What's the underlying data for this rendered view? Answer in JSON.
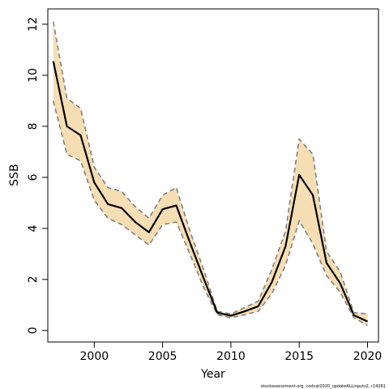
{
  "chart_data": {
    "type": "line",
    "title": "",
    "xlabel": "Year",
    "ylabel": "SSB",
    "xlim": [
      1996.6,
      2020.8
    ],
    "ylim": [
      -0.45,
      12.6
    ],
    "x_ticks": [
      2000,
      2005,
      2010,
      2015,
      2020
    ],
    "y_ticks": [
      0,
      2,
      4,
      6,
      8,
      10,
      12
    ],
    "grid": false,
    "legend": "none",
    "colors": {
      "band": "#f5deb3",
      "estimate": "#000000",
      "bounds": "#808080"
    },
    "x": [
      1997,
      1998,
      1999,
      2000,
      2001,
      2002,
      2003,
      2004,
      2005,
      2006,
      2007,
      2008,
      2009,
      2010,
      2011,
      2012,
      2013,
      2014,
      2015,
      2016,
      2017,
      2018,
      2019,
      2020
    ],
    "series": [
      {
        "role": "estimate",
        "values": [
          10.55,
          8.0,
          7.65,
          5.8,
          4.95,
          4.8,
          4.25,
          3.85,
          4.75,
          4.9,
          3.45,
          2.05,
          0.7,
          0.58,
          0.75,
          0.95,
          1.9,
          3.3,
          6.1,
          5.3,
          2.65,
          1.85,
          0.6,
          0.35
        ]
      },
      {
        "role": "upper",
        "values": [
          12.1,
          9.1,
          8.7,
          6.4,
          5.6,
          5.45,
          4.85,
          4.4,
          5.3,
          5.6,
          3.9,
          2.4,
          0.75,
          0.65,
          0.9,
          1.15,
          2.4,
          3.9,
          7.5,
          6.9,
          3.1,
          2.3,
          0.7,
          0.65
        ]
      },
      {
        "role": "lower",
        "values": [
          9.0,
          6.9,
          6.65,
          5.1,
          4.4,
          4.15,
          3.75,
          3.35,
          4.15,
          4.25,
          3.0,
          1.7,
          0.62,
          0.5,
          0.62,
          0.75,
          1.45,
          2.55,
          4.3,
          3.4,
          2.15,
          1.5,
          0.5,
          0.2
        ]
      }
    ]
  },
  "footnote": "stockassessment.org, codcat2020_updateALLinputs2, r14261"
}
